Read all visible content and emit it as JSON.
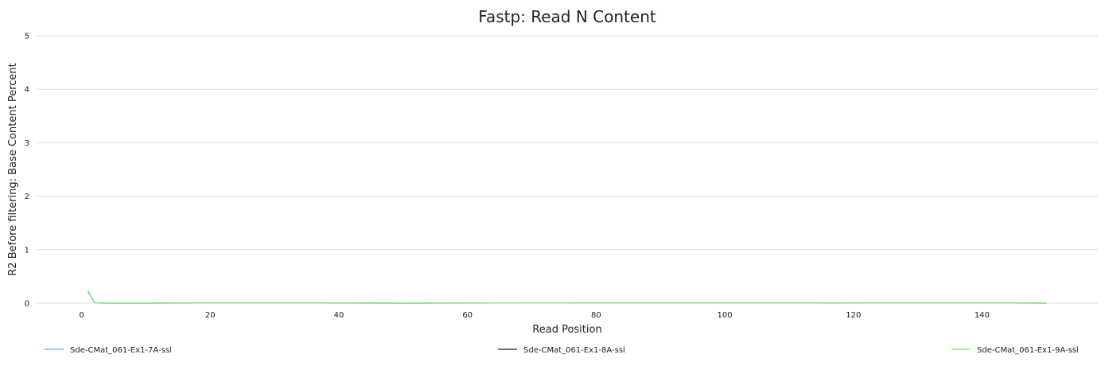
{
  "chart_data": {
    "type": "line",
    "title": "Fastp: Read N Content",
    "xlabel": "Read Position",
    "ylabel": "R2 Before filtering: Base Content Percent",
    "xlim": [
      -7,
      158
    ],
    "ylim": [
      0,
      5
    ],
    "x_ticks": [
      0,
      20,
      40,
      60,
      80,
      100,
      120,
      140
    ],
    "y_ticks": [
      0,
      1,
      2,
      3,
      4,
      5
    ],
    "grid": true,
    "legend_position": "bottom",
    "series": [
      {
        "name": "Sde-CMat_061-Ex1-7A-ssl",
        "color": "#7cb5ec",
        "x": [
          1,
          2,
          3,
          10,
          25,
          50,
          86,
          94,
          101,
          106,
          109,
          112,
          116,
          127,
          134,
          140,
          143,
          150
        ],
        "y": [
          0.24,
          0.01,
          0.0,
          0.0,
          0.002,
          0.0,
          0.001,
          0.002,
          0.002,
          0.002,
          0.002,
          0.002,
          0.003,
          0.002,
          0.002,
          0.002,
          0.002,
          0.0
        ]
      },
      {
        "name": "Sde-CMat_061-Ex1-8A-ssl",
        "color": "#434348",
        "x": [
          1,
          2,
          3,
          10,
          25,
          50,
          86,
          94,
          101,
          106,
          109,
          112,
          116,
          127,
          134,
          140,
          143,
          150
        ],
        "y": [
          0.22,
          0.01,
          0.0,
          0.0,
          0.003,
          0.0,
          0.001,
          0.002,
          0.002,
          0.002,
          0.002,
          0.002,
          0.003,
          0.002,
          0.002,
          0.003,
          0.003,
          0.0
        ]
      },
      {
        "name": "Sde-CMat_061-Ex1-9A-ssl",
        "color": "#90ed7d",
        "x": [
          1,
          2,
          3,
          10,
          25,
          50,
          86,
          94,
          101,
          106,
          109,
          112,
          116,
          127,
          134,
          140,
          143,
          150
        ],
        "y": [
          0.23,
          0.01,
          0.0,
          0.0,
          0.002,
          0.0,
          0.001,
          0.002,
          0.002,
          0.002,
          0.002,
          0.002,
          0.003,
          0.002,
          0.002,
          0.002,
          0.002,
          0.0
        ]
      }
    ]
  }
}
